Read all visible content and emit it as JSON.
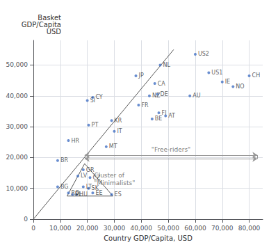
{
  "chart_data": {
    "type": "scatter",
    "xlabel": "Country GDP/Capita, USD",
    "ylabel": "Basket\nGDP/Capita\nUSD",
    "labels": [
      "US2",
      "US1",
      "CH",
      "NL",
      "JP",
      "IE",
      "NO",
      "CA",
      "AU",
      "DE",
      "NZ",
      "CY",
      "SI",
      "FR",
      "FI",
      "AT",
      "BE",
      "KR",
      "PT",
      "IT",
      "HR",
      "MT",
      "BR",
      "GR",
      "LV",
      "CZ",
      "LT",
      "SK",
      "BG",
      "RO",
      "PL",
      "HU",
      "EE",
      "ES"
    ],
    "x": [
      60000,
      65000,
      80000,
      47000,
      38000,
      70000,
      74000,
      45000,
      58000,
      46000,
      43000,
      22000,
      20000,
      39000,
      46500,
      49000,
      44000,
      29000,
      20500,
      30000,
      13000,
      27000,
      9000,
      18500,
      16500,
      21000,
      18500,
      20500,
      9000,
      13000,
      14500,
      16000,
      22000,
      29000
    ],
    "values": [
      53500,
      47500,
      46500,
      50000,
      46500,
      44500,
      43000,
      44000,
      40000,
      40500,
      40000,
      39500,
      38500,
      37000,
      34500,
      33500,
      32500,
      32000,
      30500,
      28500,
      25500,
      23500,
      19000,
      16000,
      14000,
      13500,
      10500,
      10000,
      10500,
      8500,
      8000,
      8000,
      8500,
      8000
    ],
    "color": "#4472c4",
    "xlim": [
      0,
      85000
    ],
    "ylim": [
      0,
      58000
    ],
    "xticks": [
      0,
      {
        "value": 10000,
        "label": "10,000"
      },
      {
        "value": 20000,
        "label": "20,000"
      },
      {
        "value": 30000,
        "label": "30,000"
      },
      {
        "value": 40000,
        "label": "40,000"
      },
      {
        "value": 50000,
        "label": "50,000"
      },
      {
        "value": 60000,
        "label": "60,000"
      },
      {
        "value": 70000,
        "label": "70,000"
      },
      {
        "value": 80000,
        "label": "80,000"
      }
    ],
    "yticks": [
      0,
      {
        "value": 10000,
        "label": "10,000"
      },
      {
        "value": 20000,
        "label": "20,000"
      },
      {
        "value": 30000,
        "label": "30,000"
      },
      {
        "value": 40000,
        "label": "40,000"
      },
      {
        "value": 50000,
        "label": "50,000"
      }
    ],
    "grid": true,
    "shapes": [
      {
        "type": "line",
        "x": [
          0,
          52000
        ],
        "y": [
          0,
          55000
        ],
        "color": "#555555"
      },
      {
        "type": "polygon",
        "x": [
          12500,
          29500,
          19000
        ],
        "y": [
          7500,
          7500,
          18000
        ],
        "color": "#555555"
      },
      {
        "type": "double_arrow",
        "x": [
          19000,
          83000
        ],
        "y": [
          19600,
          20800
        ],
        "color": "#999999"
      }
    ],
    "annotations": [
      {
        "text": "\"Free-riders\"",
        "x": 51000,
        "y": 20800
      },
      {
        "text": "Cluster of\n\"Minimalists\"",
        "x": 22500,
        "y": 15800
      }
    ]
  }
}
